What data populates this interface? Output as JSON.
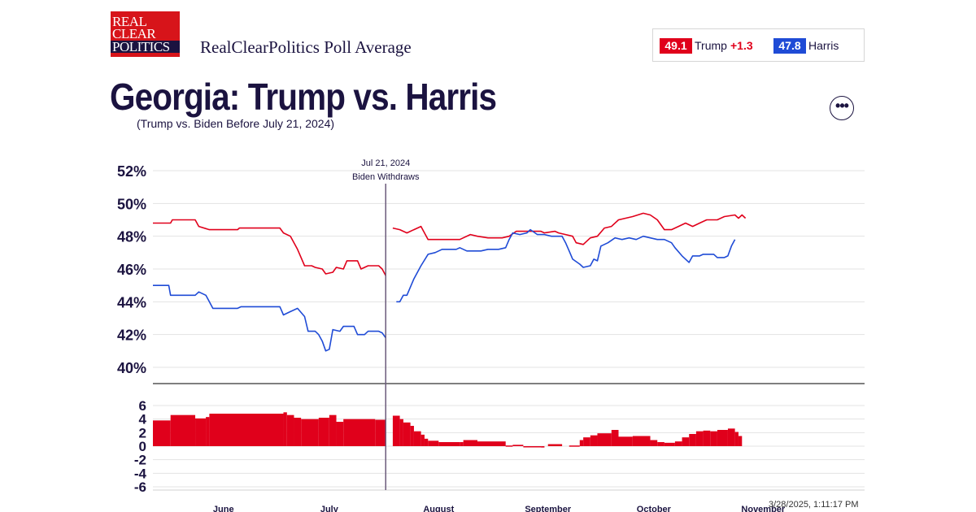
{
  "header": {
    "logo_lines": [
      "REAL",
      "CLEAR",
      "POLITICS"
    ],
    "brand": "RealClearPolitics Poll Average"
  },
  "legend": {
    "trump": {
      "value": "49.1",
      "name": "Trump",
      "change": "+1.3",
      "color": "#e0001b"
    },
    "harris": {
      "value": "47.8",
      "name": "Harris",
      "color": "#1f4bd6"
    }
  },
  "title": "Georgia: Trump vs. Harris",
  "subtitle": "(Trump vs. Biden Before July 21, 2024)",
  "more_icon": "more-horizontal-icon",
  "timestamp": "3/28/2025, 1:11:17 PM",
  "chart_data": [
    {
      "type": "line",
      "title": "",
      "xlabel": "",
      "ylabel": "",
      "ylim": [
        39,
        53
      ],
      "y_ticks": [
        "52%",
        "50%",
        "48%",
        "46%",
        "44%",
        "42%",
        "40%"
      ],
      "y_tick_values": [
        52,
        50,
        48,
        46,
        44,
        42,
        40
      ],
      "x_ticks": [
        "June",
        "July",
        "August",
        "September",
        "October",
        "November"
      ],
      "x_tick_days": [
        20,
        50,
        81,
        112,
        142,
        173
      ],
      "x_range_days": [
        0,
        178
      ],
      "grid": true,
      "annotation": {
        "line1": "Jul 21, 2024",
        "line2": "Biden Withdraws",
        "day": 66
      },
      "series": [
        {
          "name": "Trump",
          "color": "#e0001b",
          "points": [
            [
              0,
              48.8
            ],
            [
              5,
              48.8
            ],
            [
              5.5,
              49.0
            ],
            [
              12,
              49.0
            ],
            [
              13,
              48.6
            ],
            [
              16,
              48.4
            ],
            [
              24,
              48.4
            ],
            [
              24.5,
              48.5
            ],
            [
              36,
              48.5
            ],
            [
              37,
              48.2
            ],
            [
              39,
              48.0
            ],
            [
              41,
              47.2
            ],
            [
              43,
              46.2
            ],
            [
              45,
              46.2
            ],
            [
              46,
              46.1
            ],
            [
              48,
              46.0
            ],
            [
              49,
              45.7
            ],
            [
              51,
              45.8
            ],
            [
              52,
              46.1
            ],
            [
              54,
              46.0
            ],
            [
              55,
              46.5
            ],
            [
              58,
              46.5
            ],
            [
              59,
              46.0
            ],
            [
              61,
              46.2
            ],
            [
              64,
              46.2
            ],
            [
              65,
              46.0
            ],
            [
              66,
              45.6
            ]
          ]
        },
        {
          "name": "Trump",
          "color": "#e0001b",
          "points": [
            [
              68,
              48.5
            ],
            [
              70,
              48.4
            ],
            [
              72,
              48.2
            ],
            [
              74,
              48.4
            ],
            [
              76,
              48.6
            ],
            [
              78,
              47.8
            ],
            [
              83,
              47.8
            ],
            [
              87,
              47.8
            ],
            [
              90,
              48.1
            ],
            [
              92,
              48.0
            ],
            [
              95,
              47.9
            ],
            [
              99,
              47.9
            ],
            [
              101,
              48.0
            ],
            [
              103,
              48.3
            ],
            [
              110,
              48.3
            ],
            [
              111,
              48.2
            ],
            [
              114,
              48.3
            ],
            [
              115,
              48.2
            ],
            [
              117,
              48.1
            ],
            [
              119,
              48.0
            ],
            [
              120,
              47.6
            ],
            [
              122,
              47.5
            ],
            [
              124,
              47.9
            ],
            [
              126,
              48.0
            ],
            [
              128,
              48.5
            ],
            [
              130,
              48.6
            ],
            [
              132,
              49.0
            ],
            [
              134,
              49.1
            ],
            [
              136,
              49.2
            ],
            [
              139,
              49.4
            ],
            [
              141,
              49.3
            ],
            [
              143,
              49.0
            ],
            [
              145,
              48.4
            ],
            [
              147,
              48.4
            ],
            [
              149,
              48.6
            ],
            [
              151,
              48.8
            ],
            [
              153,
              48.6
            ],
            [
              155,
              48.8
            ],
            [
              157,
              49.0
            ],
            [
              160,
              49.0
            ],
            [
              162,
              49.2
            ],
            [
              165,
              49.3
            ],
            [
              166,
              49.1
            ],
            [
              167,
              49.3
            ],
            [
              168,
              49.1
            ]
          ]
        },
        {
          "name": "Harris",
          "color": "#1f4bd6",
          "points": [
            [
              0,
              45.0
            ],
            [
              4,
              45.0
            ],
            [
              4.5,
              45.0
            ],
            [
              5,
              44.4
            ],
            [
              12,
              44.4
            ],
            [
              13,
              44.6
            ],
            [
              15,
              44.4
            ],
            [
              16,
              44.0
            ],
            [
              17,
              43.6
            ],
            [
              24,
              43.6
            ],
            [
              25,
              43.7
            ],
            [
              36,
              43.7
            ],
            [
              37,
              43.2
            ],
            [
              39,
              43.4
            ],
            [
              41,
              43.6
            ],
            [
              43,
              43.1
            ],
            [
              44,
              42.2
            ],
            [
              46,
              42.2
            ],
            [
              47,
              42.0
            ],
            [
              48,
              41.6
            ],
            [
              49,
              41.0
            ],
            [
              50,
              41.1
            ],
            [
              51,
              42.3
            ],
            [
              53,
              42.2
            ],
            [
              54,
              42.5
            ],
            [
              57,
              42.5
            ],
            [
              58,
              42.0
            ],
            [
              60,
              42.0
            ],
            [
              61,
              42.2
            ],
            [
              64,
              42.2
            ],
            [
              65,
              42.1
            ],
            [
              66,
              41.8
            ]
          ]
        },
        {
          "name": "Harris",
          "color": "#1f4bd6",
          "points": [
            [
              69,
              44.0
            ],
            [
              70,
              44.0
            ],
            [
              71,
              44.4
            ],
            [
              72,
              44.4
            ],
            [
              74,
              45.4
            ],
            [
              76,
              46.2
            ],
            [
              78,
              46.9
            ],
            [
              80,
              47.0
            ],
            [
              82,
              47.2
            ],
            [
              86,
              47.2
            ],
            [
              87,
              47.3
            ],
            [
              89,
              47.1
            ],
            [
              93,
              47.1
            ],
            [
              95,
              47.2
            ],
            [
              98,
              47.2
            ],
            [
              100,
              47.3
            ],
            [
              101,
              47.8
            ],
            [
              102,
              48.2
            ],
            [
              104,
              48.1
            ],
            [
              106,
              48.2
            ],
            [
              107,
              48.4
            ],
            [
              109,
              48.1
            ],
            [
              111,
              48.1
            ],
            [
              113,
              48.0
            ],
            [
              116,
              48.0
            ],
            [
              117,
              47.6
            ],
            [
              118,
              47.1
            ],
            [
              119,
              46.6
            ],
            [
              121,
              46.3
            ],
            [
              122,
              46.1
            ],
            [
              124,
              46.2
            ],
            [
              125,
              46.6
            ],
            [
              126,
              46.5
            ],
            [
              127,
              47.4
            ],
            [
              129,
              47.6
            ],
            [
              131,
              47.9
            ],
            [
              133,
              47.8
            ],
            [
              135,
              47.9
            ],
            [
              137,
              47.8
            ],
            [
              139,
              48.0
            ],
            [
              141,
              47.9
            ],
            [
              143,
              47.8
            ],
            [
              145,
              47.8
            ],
            [
              147,
              47.6
            ],
            [
              148,
              47.3
            ],
            [
              150,
              46.8
            ],
            [
              152,
              46.4
            ],
            [
              153,
              46.8
            ],
            [
              155,
              46.8
            ],
            [
              156,
              46.9
            ],
            [
              159,
              46.9
            ],
            [
              160,
              46.7
            ],
            [
              162,
              46.7
            ],
            [
              163,
              46.8
            ],
            [
              164,
              47.4
            ],
            [
              165,
              47.8
            ]
          ]
        }
      ]
    },
    {
      "type": "bar",
      "title": "",
      "xlabel": "",
      "ylabel": "",
      "ylim": [
        -6,
        6
      ],
      "y_ticks": [
        "6",
        "4",
        "2",
        "0",
        "-2",
        "-4",
        "-6"
      ],
      "y_tick_values": [
        6,
        4,
        2,
        0,
        -2,
        -4,
        -6
      ],
      "x_tick_days": [
        20,
        50,
        81,
        112,
        142,
        173
      ],
      "color": "#e0001b",
      "series": [
        {
          "name": "Spread",
          "segments": [
            [
              0,
              5,
              3.8
            ],
            [
              5,
              12,
              4.6
            ],
            [
              12,
              15,
              4.1
            ],
            [
              15,
              16,
              4.3
            ],
            [
              16,
              37,
              4.8
            ],
            [
              37,
              38,
              5.0
            ],
            [
              38,
              40,
              4.6
            ],
            [
              40,
              42,
              4.2
            ],
            [
              42,
              47,
              4.0
            ],
            [
              47,
              50,
              4.2
            ],
            [
              50,
              52,
              4.6
            ],
            [
              52,
              54,
              3.6
            ],
            [
              54,
              63,
              4.0
            ],
            [
              63,
              66,
              3.9
            ],
            [
              68,
              70,
              4.5
            ],
            [
              70,
              71,
              4.0
            ],
            [
              71,
              73,
              3.5
            ],
            [
              73,
              74,
              3.0
            ],
            [
              74,
              76,
              2.2
            ],
            [
              76,
              77,
              1.7
            ],
            [
              77,
              78,
              1.1
            ],
            [
              78,
              81,
              0.8
            ],
            [
              81,
              87,
              0.6
            ],
            [
              87,
              88,
              0.6
            ],
            [
              88,
              92,
              0.9
            ],
            [
              92,
              100,
              0.7
            ],
            [
              100,
              102,
              0.1
            ],
            [
              102,
              105,
              0.2
            ],
            [
              105,
              110,
              -0.1
            ],
            [
              110,
              111,
              -0.2
            ],
            [
              112,
              116,
              0.3
            ],
            [
              118,
              121,
              0.1
            ],
            [
              121,
              122,
              0.9
            ],
            [
              122,
              124,
              1.3
            ],
            [
              124,
              126,
              1.6
            ],
            [
              126,
              130,
              1.9
            ],
            [
              130,
              132,
              2.4
            ],
            [
              132,
              136,
              1.4
            ],
            [
              136,
              141,
              1.5
            ],
            [
              141,
              143,
              0.9
            ],
            [
              143,
              145,
              0.6
            ],
            [
              145,
              148,
              0.5
            ],
            [
              148,
              150,
              0.7
            ],
            [
              150,
              152,
              1.3
            ],
            [
              152,
              154,
              1.8
            ],
            [
              154,
              156,
              2.2
            ],
            [
              156,
              158,
              2.3
            ],
            [
              158,
              160,
              2.2
            ],
            [
              160,
              163,
              2.4
            ],
            [
              163,
              165,
              2.6
            ],
            [
              165,
              166,
              2.1
            ],
            [
              166,
              167,
              1.5
            ]
          ]
        }
      ]
    }
  ]
}
